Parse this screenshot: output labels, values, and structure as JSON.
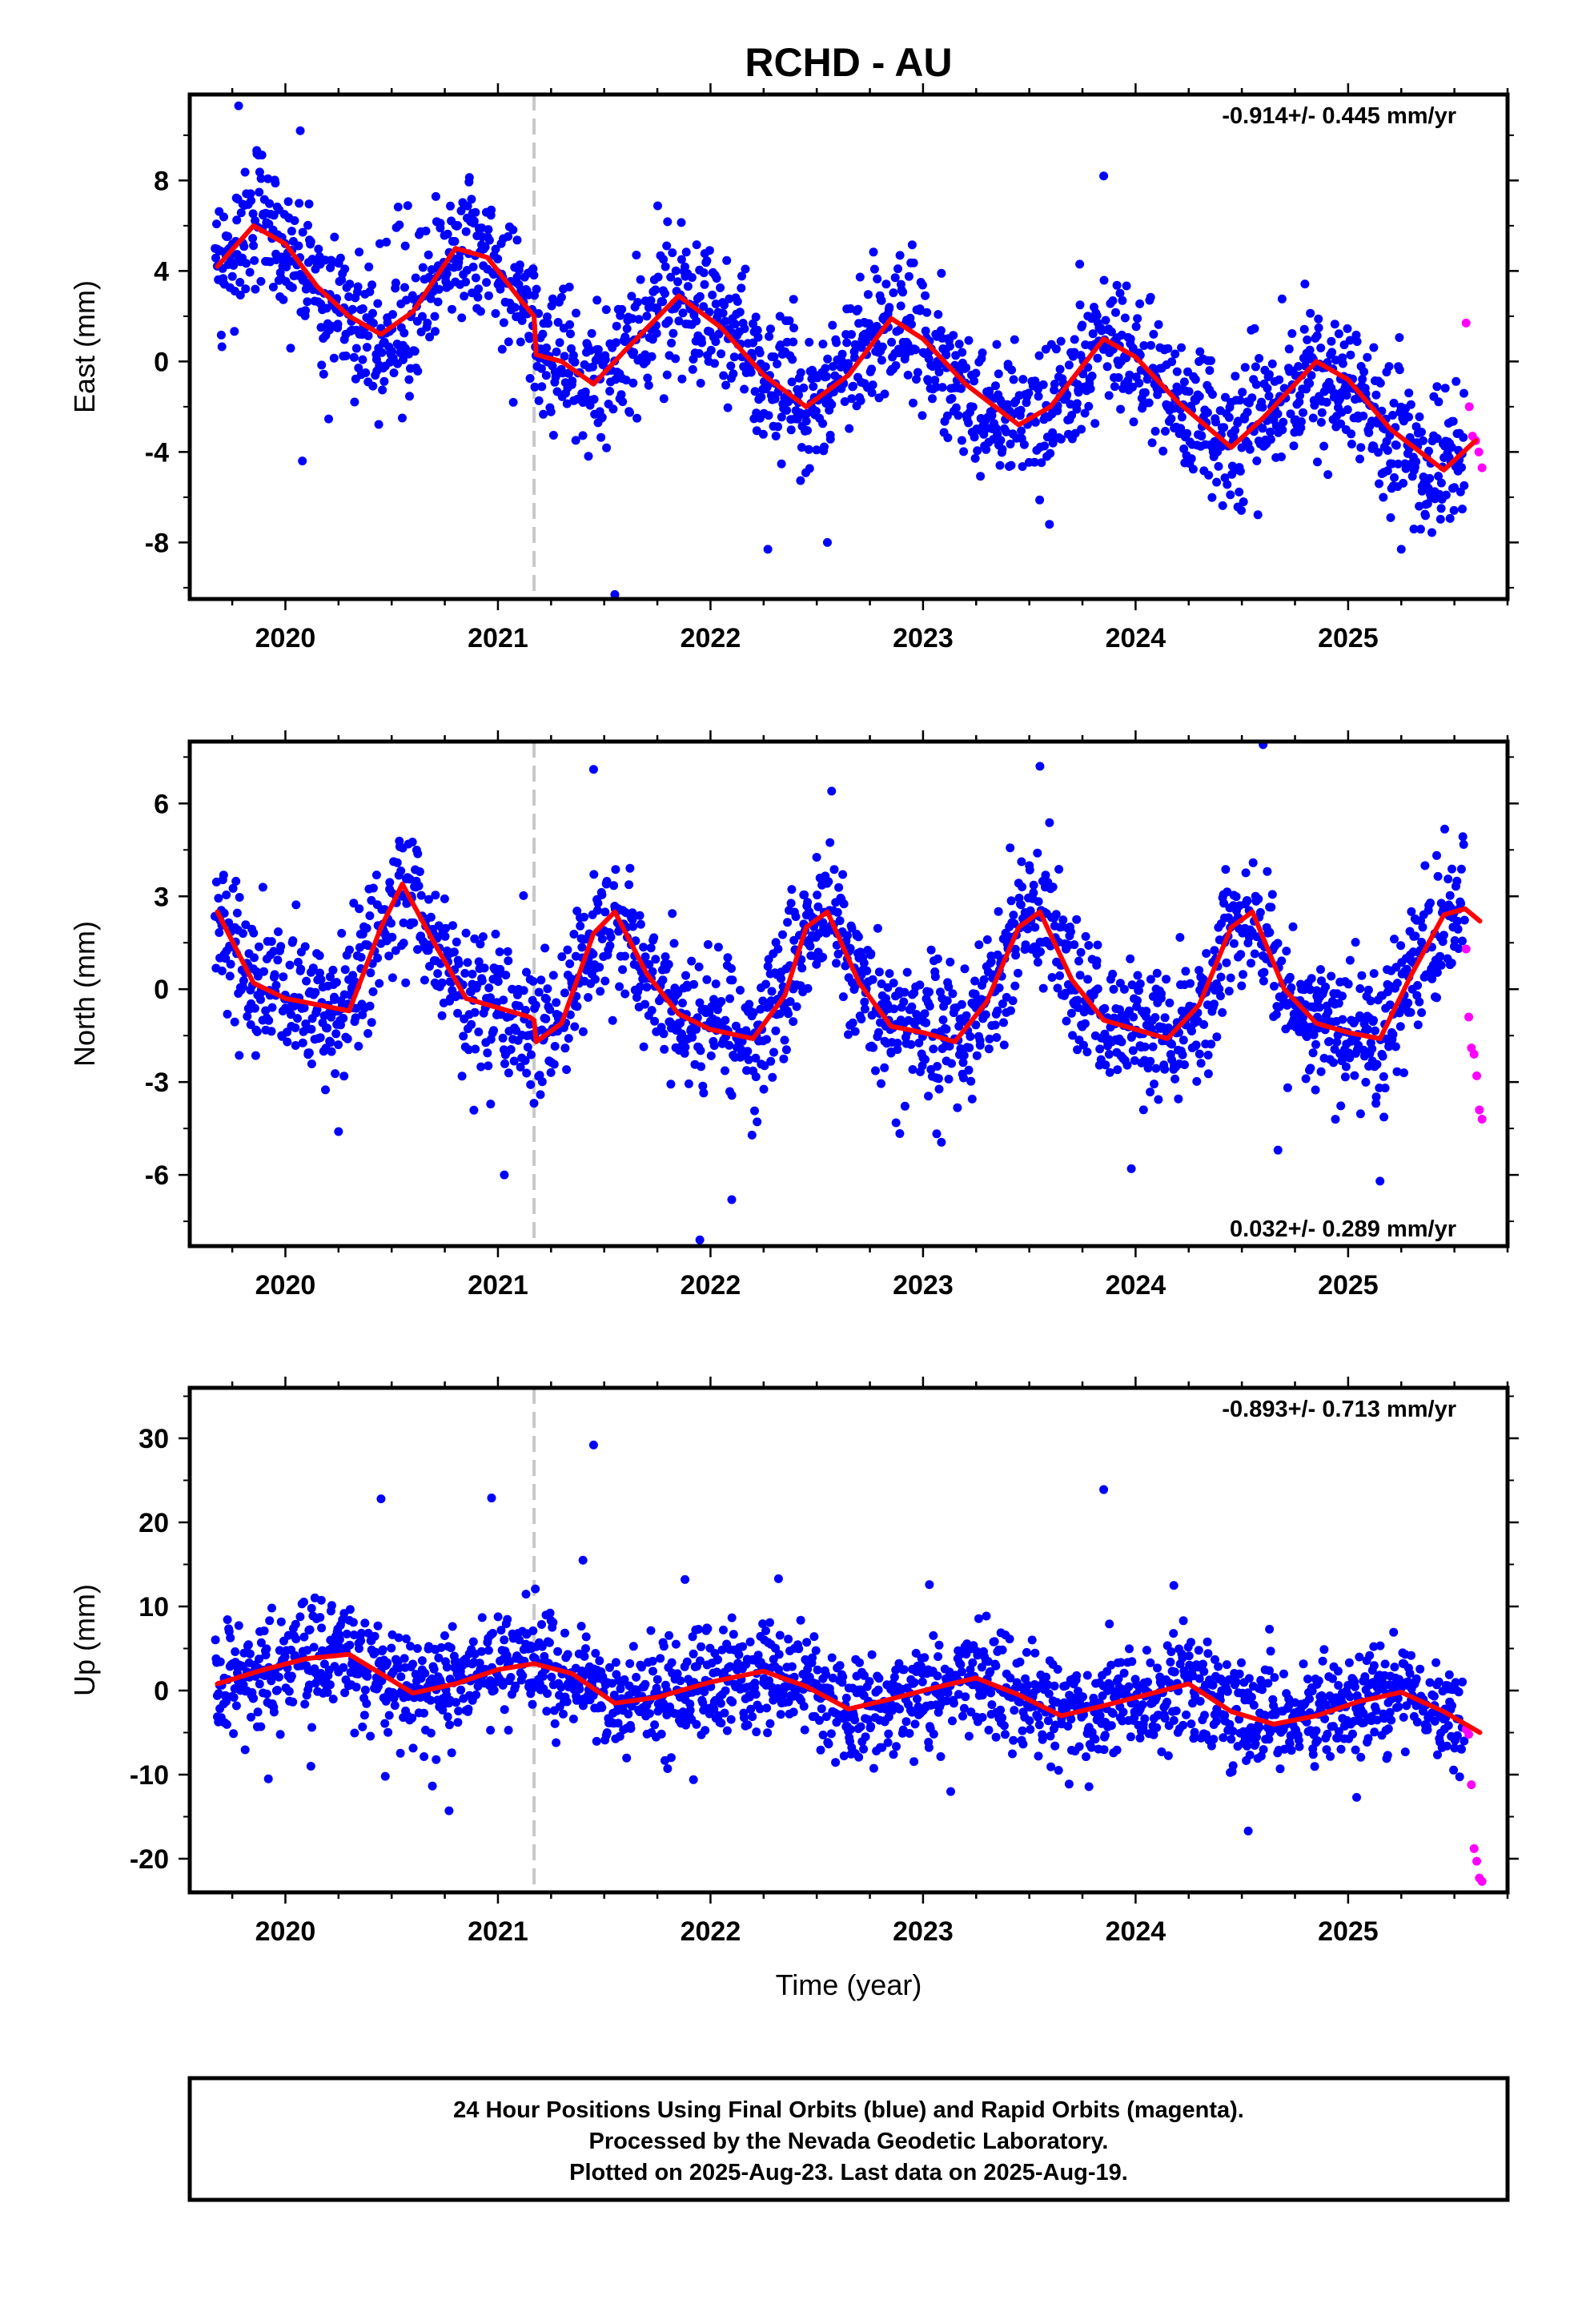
{
  "title": "RCHD - AU",
  "footer": {
    "line1": "24 Hour Positions Using Final Orbits (blue) and Rapid Orbits (magenta).",
    "line2": "Processed by the Nevada Geodetic Laboratory.",
    "line3": "Plotted on 2025-Aug-23. Last data on 2025-Aug-19."
  },
  "colors": {
    "final_orbits": "#0000ff",
    "rapid_orbits": "#ff00ff",
    "trend": "#ff0000",
    "event_line": "#c8c8c8"
  },
  "chart_data": [
    {
      "type": "scatter",
      "component": "east",
      "ylabel": "East (mm)",
      "xlabel": "",
      "rate_text": "-0.914+/- 0.445 mm/yr",
      "rate_position": "top-right",
      "xlim": [
        2019.55,
        2025.75
      ],
      "ylim": [
        -10.5,
        11.8
      ],
      "x_ticks": [
        2020,
        2021,
        2022,
        2023,
        2024,
        2025
      ],
      "y_ticks": [
        -8,
        -4,
        0,
        4,
        8
      ],
      "event_line_x": 2021.17,
      "data_start": 2019.67,
      "data_end": 2025.55,
      "rapid_start": 2025.555,
      "rapid_end": 2025.63,
      "scatter_sigma": 1.6,
      "trend": {
        "x": [
          2019.68,
          2019.85,
          2020.0,
          2020.15,
          2020.3,
          2020.45,
          2020.6,
          2020.8,
          2020.95,
          2021.1,
          2021.17,
          2021.18,
          2021.3,
          2021.45,
          2021.6,
          2021.85,
          2022.05,
          2022.25,
          2022.45,
          2022.65,
          2022.85,
          2023.0,
          2023.2,
          2023.45,
          2023.6,
          2023.85,
          2024.0,
          2024.2,
          2024.45,
          2024.6,
          2024.85,
          2025.0,
          2025.2,
          2025.45,
          2025.6
        ],
        "y": [
          4.2,
          6.0,
          5.2,
          3.3,
          2.0,
          1.2,
          2.2,
          5.0,
          4.6,
          2.8,
          2.0,
          0.3,
          0.0,
          -1.0,
          0.5,
          2.9,
          1.5,
          -0.6,
          -2.0,
          -0.6,
          1.9,
          1.0,
          -1.0,
          -2.8,
          -2.0,
          1.0,
          0.2,
          -1.8,
          -3.8,
          -2.5,
          0.0,
          -0.8,
          -3.0,
          -4.8,
          -3.5
        ]
      },
      "rapid_points": [
        1.7,
        -2.0,
        -3.3,
        -3.5,
        -4.0,
        -4.7
      ],
      "outliers": [
        {
          "x": 2019.78,
          "y": 11.3
        },
        {
          "x": 2020.07,
          "y": 10.2
        },
        {
          "x": 2020.08,
          "y": -4.4
        },
        {
          "x": 2020.55,
          "y": -2.5
        },
        {
          "x": 2021.55,
          "y": -10.3
        },
        {
          "x": 2022.27,
          "y": -8.3
        },
        {
          "x": 2022.55,
          "y": -8.0
        },
        {
          "x": 2023.85,
          "y": 8.2
        },
        {
          "x": 2025.25,
          "y": -8.3
        }
      ]
    },
    {
      "type": "scatter",
      "component": "north",
      "ylabel": "North (mm)",
      "xlabel": "",
      "rate_text": "0.032+/- 0.289 mm/yr",
      "rate_position": "bottom-right",
      "xlim": [
        2019.55,
        2025.75
      ],
      "ylim": [
        -8.3,
        8.0
      ],
      "x_ticks": [
        2020,
        2021,
        2022,
        2023,
        2024,
        2025
      ],
      "y_ticks": [
        -6,
        -3,
        0,
        3,
        6
      ],
      "event_line_x": 2021.17,
      "data_start": 2019.67,
      "data_end": 2025.55,
      "rapid_start": 2025.555,
      "rapid_end": 2025.63,
      "scatter_sigma": 1.1,
      "trend": {
        "x": [
          2019.68,
          2019.85,
          2020.0,
          2020.15,
          2020.3,
          2020.45,
          2020.55,
          2020.7,
          2020.85,
          2021.0,
          2021.15,
          2021.17,
          2021.18,
          2021.3,
          2021.45,
          2021.55,
          2021.7,
          2021.85,
          2022.0,
          2022.2,
          2022.35,
          2022.45,
          2022.55,
          2022.7,
          2022.85,
          2023.0,
          2023.15,
          2023.3,
          2023.45,
          2023.55,
          2023.7,
          2023.85,
          2024.0,
          2024.15,
          2024.3,
          2024.45,
          2024.55,
          2024.7,
          2024.85,
          2025.0,
          2025.15,
          2025.3,
          2025.45,
          2025.55,
          2025.62
        ],
        "y": [
          2.5,
          0.2,
          -0.3,
          -0.5,
          -0.7,
          2.0,
          3.4,
          1.5,
          -0.3,
          -0.6,
          -0.9,
          -1.0,
          -1.7,
          -1.1,
          1.8,
          2.5,
          0.5,
          -0.8,
          -1.3,
          -1.6,
          -0.2,
          2.0,
          2.5,
          0.2,
          -1.2,
          -1.4,
          -1.7,
          -0.4,
          2.0,
          2.5,
          0.3,
          -1.0,
          -1.3,
          -1.6,
          -0.5,
          2.0,
          2.5,
          0.0,
          -1.1,
          -1.4,
          -1.6,
          0.5,
          2.4,
          2.6,
          2.2
        ]
      },
      "rapid_points": [
        1.3,
        -0.9,
        -1.9,
        -2.1,
        -2.8,
        -3.9,
        -4.2
      ],
      "outliers": [
        {
          "x": 2020.25,
          "y": -4.6
        },
        {
          "x": 2021.03,
          "y": -6.0
        },
        {
          "x": 2021.45,
          "y": 7.1
        },
        {
          "x": 2021.95,
          "y": -8.1
        },
        {
          "x": 2022.1,
          "y": -6.8
        },
        {
          "x": 2022.57,
          "y": 6.4
        },
        {
          "x": 2023.55,
          "y": 7.2
        },
        {
          "x": 2023.98,
          "y": -5.8
        },
        {
          "x": 2024.6,
          "y": 7.9
        },
        {
          "x": 2024.67,
          "y": -5.2
        },
        {
          "x": 2025.15,
          "y": -6.2
        }
      ]
    },
    {
      "type": "scatter",
      "component": "up",
      "ylabel": "Up (mm)",
      "xlabel": "Time (year)",
      "rate_text": "-0.893+/- 0.713 mm/yr",
      "rate_position": "top-right",
      "xlim": [
        2019.55,
        2025.75
      ],
      "ylim": [
        -24.0,
        36.0
      ],
      "x_ticks": [
        2020,
        2021,
        2022,
        2023,
        2024,
        2025
      ],
      "y_ticks": [
        -20,
        -10,
        0,
        10,
        20,
        30
      ],
      "event_line_x": 2021.17,
      "data_start": 2019.67,
      "data_end": 2025.55,
      "rapid_start": 2025.555,
      "rapid_end": 2025.63,
      "scatter_sigma": 3.2,
      "trend": {
        "x": [
          2019.68,
          2019.9,
          2020.1,
          2020.3,
          2020.45,
          2020.6,
          2020.8,
          2021.0,
          2021.17,
          2021.35,
          2021.55,
          2021.75,
          2022.0,
          2022.25,
          2022.45,
          2022.65,
          2022.85,
          2023.05,
          2023.25,
          2023.45,
          2023.65,
          2023.85,
          2024.05,
          2024.25,
          2024.45,
          2024.65,
          2024.85,
          2025.05,
          2025.25,
          2025.45,
          2025.62
        ],
        "y": [
          0.8,
          2.5,
          3.8,
          4.3,
          2.0,
          -0.3,
          0.8,
          2.5,
          3.2,
          2.0,
          -1.5,
          -0.8,
          1.0,
          2.3,
          0.5,
          -2.2,
          -1.0,
          0.3,
          1.5,
          -0.5,
          -3.0,
          -1.8,
          -0.5,
          0.8,
          -2.5,
          -4.0,
          -3.0,
          -1.3,
          -0.2,
          -2.5,
          -5.0
        ]
      },
      "rapid_points": [
        -4.6,
        -5.2,
        -11.2,
        -18.8,
        -20.3,
        -22.3,
        -22.7
      ],
      "outliers": [
        {
          "x": 2019.92,
          "y": -10.5
        },
        {
          "x": 2020.12,
          "y": -9.0
        },
        {
          "x": 2020.45,
          "y": 22.8
        },
        {
          "x": 2020.47,
          "y": -10.2
        },
        {
          "x": 2020.77,
          "y": -14.3
        },
        {
          "x": 2020.97,
          "y": 22.9
        },
        {
          "x": 2021.4,
          "y": 15.5
        },
        {
          "x": 2021.45,
          "y": 29.2
        },
        {
          "x": 2021.88,
          "y": 13.2
        },
        {
          "x": 2021.92,
          "y": -10.6
        },
        {
          "x": 2022.32,
          "y": 13.3
        },
        {
          "x": 2023.03,
          "y": 12.6
        },
        {
          "x": 2023.85,
          "y": 23.9
        },
        {
          "x": 2024.18,
          "y": 12.5
        },
        {
          "x": 2024.53,
          "y": -16.7
        },
        {
          "x": 2024.63,
          "y": 7.3
        }
      ]
    }
  ]
}
